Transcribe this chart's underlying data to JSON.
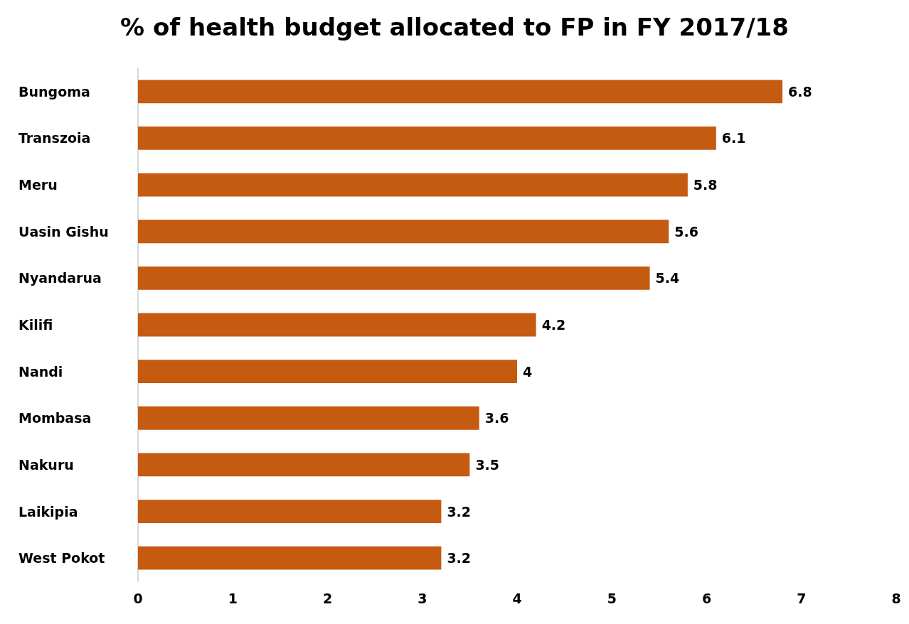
{
  "chart_data": {
    "type": "bar",
    "orientation": "horizontal",
    "title": "% of health budget allocated to FP in FY 2017/18",
    "categories": [
      "Bungoma",
      "Transzoia",
      "Meru",
      "Uasin Gishu",
      "Nyandarua",
      "Kilifi",
      "Nandi",
      "Mombasa",
      "Nakuru",
      "Laikipia",
      "West Pokot"
    ],
    "values": [
      6.8,
      6.1,
      5.8,
      5.6,
      5.4,
      4.2,
      4,
      3.6,
      3.5,
      3.2,
      3.2
    ],
    "color": "#c55a11",
    "xlim": [
      0,
      8
    ],
    "xticks": [
      0,
      1,
      2,
      3,
      4,
      5,
      6,
      7,
      8
    ],
    "data_labels": true,
    "grid": false
  }
}
